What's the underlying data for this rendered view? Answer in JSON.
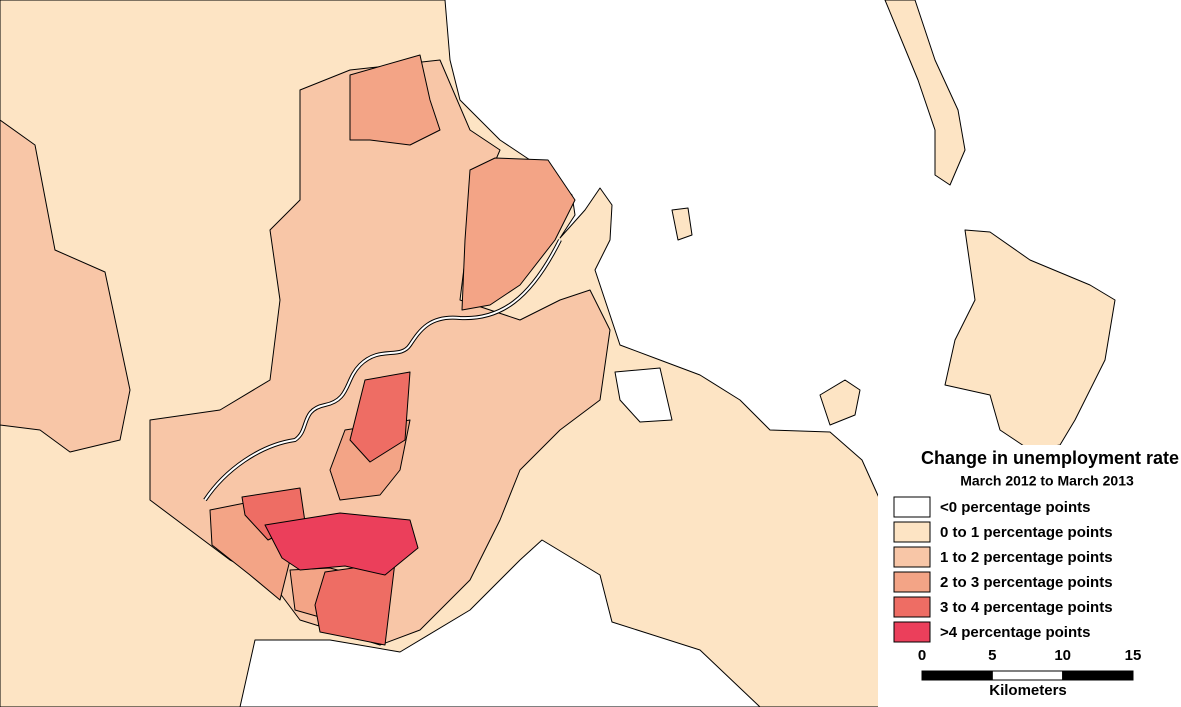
{
  "legend": {
    "title": "Change in unemployment rate",
    "subtitle": "March 2012 to March 2013",
    "items": [
      {
        "label": "<0 percentage points",
        "color": "#ffffff"
      },
      {
        "label": "0 to 1 percentage points",
        "color": "#fde4c4"
      },
      {
        "label": "1 to 2 percentage points",
        "color": "#f8c6a7"
      },
      {
        "label": "2 to 3 percentage points",
        "color": "#f3a486"
      },
      {
        "label": "3 to 4 percentage points",
        "color": "#ee6d64"
      },
      {
        "label": ">4 percentage points",
        "color": "#eb3f5b"
      }
    ]
  },
  "scale_bar": {
    "ticks": [
      0,
      5,
      10,
      15
    ],
    "unit": "Kilometers"
  }
}
